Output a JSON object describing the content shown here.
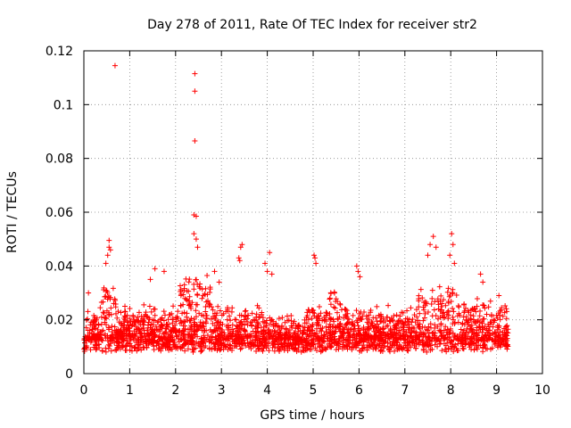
{
  "chart_data": {
    "type": "scatter",
    "title": "Day 278 of 2011, Rate Of TEC Index for receiver str2",
    "xlabel": "GPS time / hours",
    "ylabel": "ROTI / TECUs",
    "xlim": [
      0,
      10
    ],
    "ylim": [
      0,
      0.12
    ],
    "xticks": [
      "0",
      "1",
      "2",
      "3",
      "4",
      "5",
      "6",
      "7",
      "8",
      "9",
      "10"
    ],
    "yticks": [
      "0",
      "0.02",
      "0.04",
      "0.06",
      "0.08",
      "0.1",
      "0.12"
    ],
    "grid": true,
    "marker": "+",
    "colors": {
      "points": "#ff0000",
      "grid": "#888888",
      "axes": "#000000"
    },
    "series": [
      {
        "x_range": [
          0.0,
          9.25
        ],
        "points": [
          [
            0.68,
            0.1145
          ],
          [
            2.42,
            0.1115
          ],
          [
            2.42,
            0.105
          ],
          [
            2.42,
            0.0865
          ],
          [
            2.4,
            0.059
          ],
          [
            2.45,
            0.0585
          ],
          [
            2.4,
            0.052
          ],
          [
            2.45,
            0.05
          ],
          [
            2.48,
            0.047
          ],
          [
            0.55,
            0.0495
          ],
          [
            0.55,
            0.047
          ],
          [
            0.58,
            0.046
          ],
          [
            0.52,
            0.044
          ],
          [
            0.48,
            0.041
          ],
          [
            3.45,
            0.048
          ],
          [
            3.42,
            0.047
          ],
          [
            3.38,
            0.043
          ],
          [
            3.4,
            0.042
          ],
          [
            3.95,
            0.041
          ],
          [
            4.05,
            0.045
          ],
          [
            4.0,
            0.038
          ],
          [
            4.1,
            0.037
          ],
          [
            5.02,
            0.044
          ],
          [
            5.04,
            0.043
          ],
          [
            5.06,
            0.041
          ],
          [
            5.95,
            0.04
          ],
          [
            5.98,
            0.038
          ],
          [
            6.02,
            0.036
          ],
          [
            7.55,
            0.048
          ],
          [
            7.62,
            0.051
          ],
          [
            7.68,
            0.047
          ],
          [
            7.5,
            0.044
          ],
          [
            8.02,
            0.052
          ],
          [
            8.05,
            0.048
          ],
          [
            7.98,
            0.044
          ],
          [
            8.08,
            0.041
          ],
          [
            1.55,
            0.039
          ],
          [
            1.75,
            0.038
          ],
          [
            1.45,
            0.035
          ],
          [
            2.85,
            0.038
          ],
          [
            2.95,
            0.034
          ],
          [
            8.65,
            0.037
          ],
          [
            8.7,
            0.034
          ],
          [
            9.05,
            0.029
          ],
          [
            0.1,
            0.03
          ]
        ]
      }
    ]
  }
}
